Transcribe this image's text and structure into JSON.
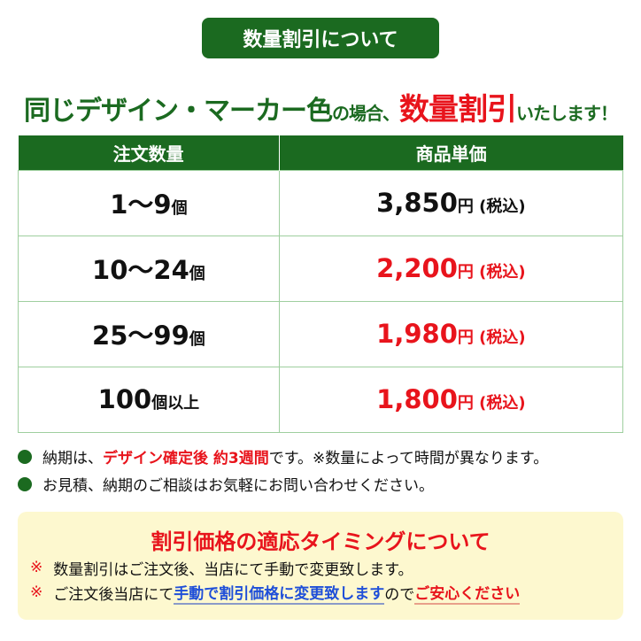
{
  "title": "数量割引について",
  "headline": {
    "part1": "同じデザイン・マーカー色",
    "part2": "の場合、",
    "part3": "数量割引",
    "part4": "いたします！"
  },
  "table": {
    "headers": [
      "注文数量",
      "商品単価"
    ],
    "rows": [
      {
        "qty": "1〜9",
        "qty_unit": "個",
        "price": "3,850",
        "price_unit": "円 (税込)",
        "highlight": false
      },
      {
        "qty": "10〜24",
        "qty_unit": "個",
        "price": "2,200",
        "price_unit": "円 (税込)",
        "highlight": true
      },
      {
        "qty": "25〜99",
        "qty_unit": "個",
        "price": "1,980",
        "price_unit": "円 (税込)",
        "highlight": true
      },
      {
        "qty": "100",
        "qty_unit": "個以上",
        "price": "1,800",
        "price_unit": "円 (税込)",
        "highlight": true
      }
    ]
  },
  "notes": [
    {
      "a": "納期は、",
      "b": "デザイン確定後 約3週間",
      "c": " です。※数量によって時間が異なります。"
    },
    {
      "a": "お見積、納期のご相談はお気軽にお問い合わせください。"
    }
  ],
  "timing": {
    "title": "割引価格の適応タイミングについて",
    "mark": "※",
    "line1": "数量割引はご注文後、当店にて手動で変更致します。",
    "line2a": "ご注文後当店にて",
    "line2b": "手動で割引価格に変更致します",
    "line2c": "ので",
    "line2d": "ご安心ください"
  },
  "colors": {
    "green": "#1b6a20",
    "red": "#e8141c",
    "blue": "#1f4fd8",
    "note_bg": "#fdf8cf"
  }
}
